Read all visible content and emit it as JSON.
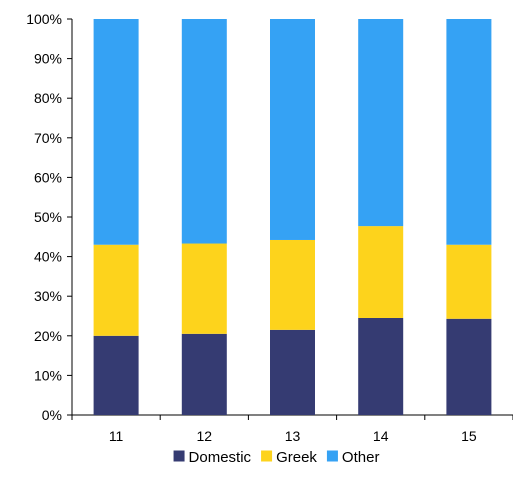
{
  "chart_data": {
    "type": "bar",
    "stacked": true,
    "categories": [
      "11",
      "12",
      "13",
      "14",
      "15"
    ],
    "series": [
      {
        "name": "Domestic",
        "color": "#353B72",
        "values": [
          20,
          20.5,
          21.5,
          24.5,
          24.3
        ]
      },
      {
        "name": "Greek",
        "color": "#FDD31C",
        "values": [
          23,
          22.8,
          22.7,
          23.2,
          18.7
        ]
      },
      {
        "name": "Other",
        "color": "#35A2F4",
        "values": [
          57,
          56.7,
          55.8,
          52.3,
          57
        ]
      }
    ],
    "ylim": [
      0,
      100
    ],
    "y_ticks": [
      "0%",
      "10%",
      "20%",
      "30%",
      "40%",
      "50%",
      "60%",
      "70%",
      "80%",
      "90%",
      "100%"
    ],
    "grid": false,
    "legend_position": "bottom"
  }
}
